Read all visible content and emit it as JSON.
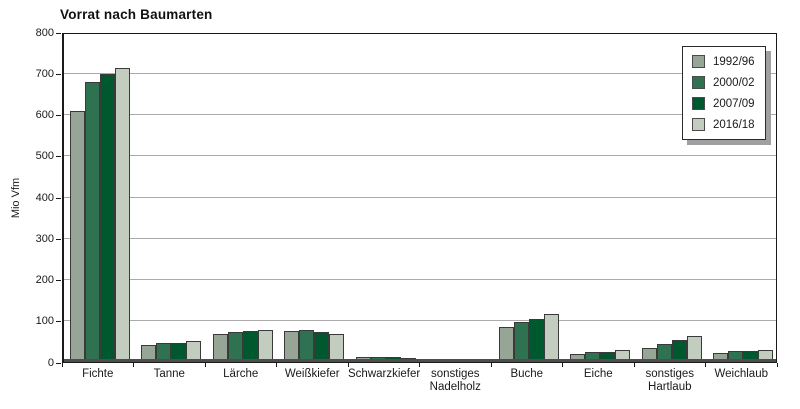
{
  "chart_data": {
    "type": "bar",
    "title": "Vorrat nach Baumarten",
    "ylabel": "Mio Vfm",
    "xlabel": "",
    "ylim": [
      0,
      800
    ],
    "yticks": [
      0,
      100,
      200,
      300,
      400,
      500,
      600,
      700,
      800
    ],
    "grid": "horizontal",
    "legend_position": "top-right-inside",
    "categories": [
      "Fichte",
      "Tanne",
      "Lärche",
      "Weißkiefer",
      "Schwarzkiefer",
      "sonstiges\nNadelholz",
      "Buche",
      "Eiche",
      "sonstiges\nHartlaub",
      "Weichlaub"
    ],
    "series": [
      {
        "name": "1992/96",
        "color": "#97a597",
        "values": [
          608,
          42,
          68,
          75,
          11,
          6,
          85,
          19,
          34,
          21
        ]
      },
      {
        "name": "2000/02",
        "color": "#2f7251",
        "values": [
          678,
          45,
          73,
          78,
          11,
          6,
          98,
          24,
          44,
          26
        ]
      },
      {
        "name": "2007/09",
        "color": "#00592e",
        "values": [
          698,
          47,
          74,
          73,
          11,
          7,
          104,
          25,
          53,
          27
        ]
      },
      {
        "name": "2016/18",
        "color": "#c2ccbf",
        "values": [
          712,
          52,
          77,
          68,
          10,
          8,
          116,
          29,
          63,
          30
        ]
      }
    ],
    "colors": {
      "grid": "#ababab",
      "axis": "#1a1a1a",
      "baseline": "#4d4d4d",
      "bar_border": "#3a3a3a",
      "legend_shadow": "#a0a0a0",
      "text": "#1a1a1a"
    }
  }
}
